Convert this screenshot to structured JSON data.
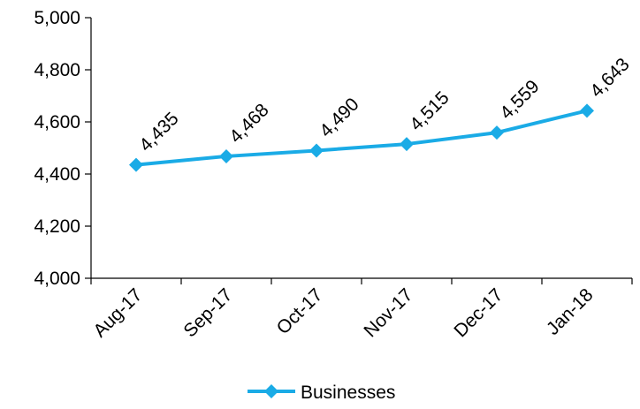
{
  "chart_data": {
    "type": "line",
    "categories": [
      "Aug-17",
      "Sep-17",
      "Oct-17",
      "Nov-17",
      "Dec-17",
      "Jan-18"
    ],
    "series": [
      {
        "name": "Businesses",
        "values": [
          4435,
          4468,
          4490,
          4515,
          4559,
          4643
        ]
      }
    ],
    "data_labels": [
      "4,435",
      "4,468",
      "4,490",
      "4,515",
      "4,559",
      "4,643"
    ],
    "y_ticks": [
      "4,000",
      "4,200",
      "4,400",
      "4,600",
      "4,800",
      "5,000"
    ],
    "ylim": [
      4000,
      5000
    ],
    "y_step": 200,
    "title": "",
    "xlabel": "",
    "ylabel": "",
    "grid": false,
    "legend": {
      "position": "bottom-center"
    },
    "colors": {
      "series": "#1AABE6",
      "axis": "#000000"
    },
    "marker": "diamond"
  }
}
